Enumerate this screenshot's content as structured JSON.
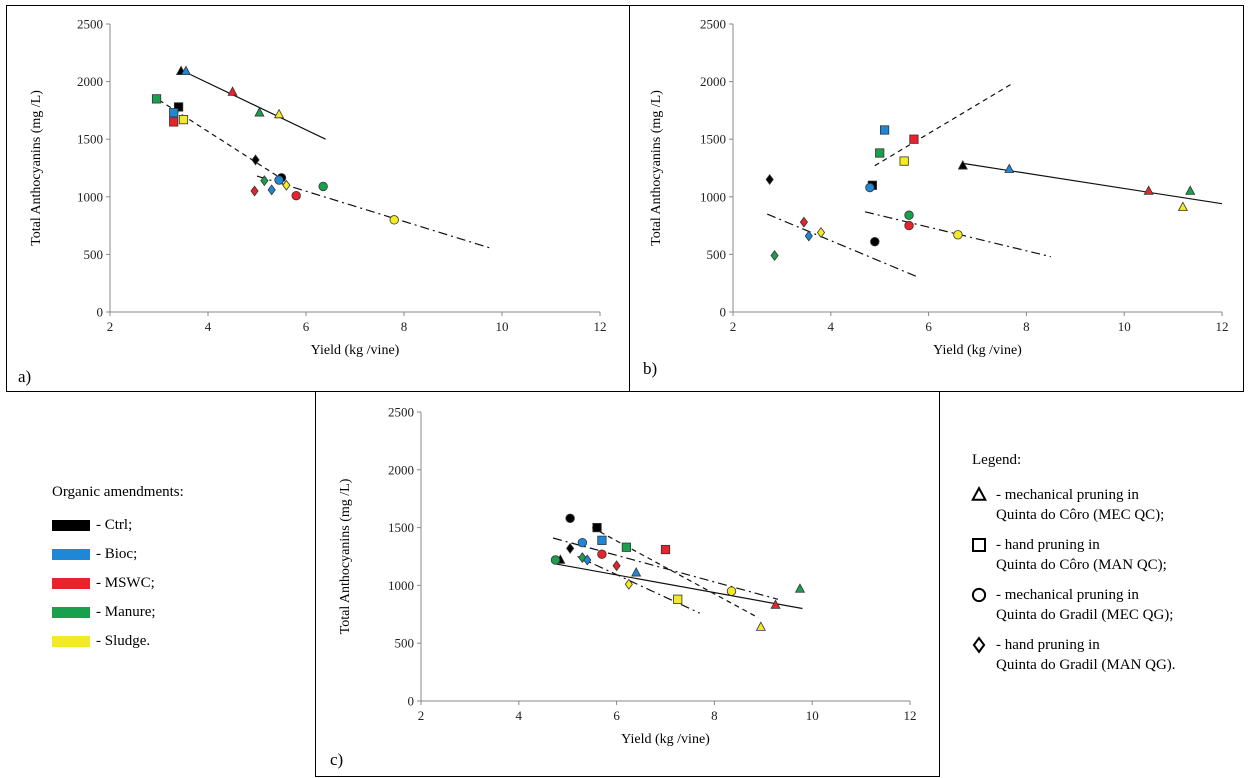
{
  "colors": {
    "Ctrl": "#000000",
    "Bioc": "#1e88d6",
    "MSWC": "#e8232b",
    "Manure": "#19a04d",
    "Sludge": "#f2ea25"
  },
  "amendments_legend": {
    "title": "Organic amendments:",
    "items": [
      {
        "key": "Ctrl",
        "label": "- Ctrl;"
      },
      {
        "key": "Bioc",
        "label": "- Bioc;"
      },
      {
        "key": "MSWC",
        "label": "- MSWC;"
      },
      {
        "key": "Manure",
        "label": "- Manure;"
      },
      {
        "key": "Sludge",
        "label": "- Sludge."
      }
    ]
  },
  "marker_legend": {
    "title": "Legend:",
    "items": [
      {
        "shape": "triangle",
        "line1": "- mechanical pruning in",
        "line2": "Quinta do Côro (MEC QC);"
      },
      {
        "shape": "square",
        "line1": "- hand pruning in",
        "line2": "Quinta do Côro (MAN QC);"
      },
      {
        "shape": "circle",
        "line1": "- mechanical pruning in",
        "line2": "Quinta do Gradil (MEC QG);"
      },
      {
        "shape": "diamond",
        "line1": "- hand pruning in",
        "line2": "Quinta do Gradil (MAN QG)."
      }
    ]
  },
  "chart_data": [
    {
      "type": "scatter",
      "panel_label": "a)",
      "xlabel": "Yield (kg /vine)",
      "ylabel": "Total Anthocyanins (mg /L)",
      "xlim": [
        2,
        12
      ],
      "ylim": [
        0,
        2500
      ],
      "xticks": [
        2,
        4,
        6,
        8,
        10,
        12
      ],
      "yticks": [
        0,
        500,
        1000,
        1500,
        2000,
        2500
      ],
      "points": [
        {
          "shape": "triangle",
          "amend": "Ctrl",
          "x": 3.45,
          "y": 2090
        },
        {
          "shape": "triangle",
          "amend": "Bioc",
          "x": 3.55,
          "y": 2090
        },
        {
          "shape": "triangle",
          "amend": "MSWC",
          "x": 4.5,
          "y": 1910
        },
        {
          "shape": "triangle",
          "amend": "Manure",
          "x": 5.05,
          "y": 1730
        },
        {
          "shape": "triangle",
          "amend": "Sludge",
          "x": 5.45,
          "y": 1715
        },
        {
          "shape": "square",
          "amend": "Manure",
          "x": 2.95,
          "y": 1850
        },
        {
          "shape": "square",
          "amend": "Ctrl",
          "x": 3.4,
          "y": 1780
        },
        {
          "shape": "square",
          "amend": "Bioc",
          "x": 3.3,
          "y": 1730
        },
        {
          "shape": "square",
          "amend": "MSWC",
          "x": 3.3,
          "y": 1650
        },
        {
          "shape": "square",
          "amend": "Sludge",
          "x": 3.5,
          "y": 1670
        },
        {
          "shape": "circle",
          "amend": "Ctrl",
          "x": 5.5,
          "y": 1165
        },
        {
          "shape": "circle",
          "amend": "Bioc",
          "x": 5.45,
          "y": 1145
        },
        {
          "shape": "circle",
          "amend": "Manure",
          "x": 6.35,
          "y": 1090
        },
        {
          "shape": "circle",
          "amend": "MSWC",
          "x": 5.8,
          "y": 1010
        },
        {
          "shape": "circle",
          "amend": "Sludge",
          "x": 7.8,
          "y": 800
        },
        {
          "shape": "diamond",
          "amend": "Ctrl",
          "x": 4.97,
          "y": 1320
        },
        {
          "shape": "diamond",
          "amend": "Manure",
          "x": 5.15,
          "y": 1140
        },
        {
          "shape": "diamond",
          "amend": "Sludge",
          "x": 5.6,
          "y": 1100
        },
        {
          "shape": "diamond",
          "amend": "Bioc",
          "x": 5.3,
          "y": 1060
        },
        {
          "shape": "diamond",
          "amend": "MSWC",
          "x": 4.95,
          "y": 1050
        }
      ],
      "trendlines": [
        {
          "style": "solid",
          "x": [
            3.5,
            6.4
          ],
          "y": [
            2090,
            1500
          ]
        },
        {
          "style": "dash",
          "x": [
            3.0,
            5.6
          ],
          "y": [
            1840,
            1130
          ]
        },
        {
          "style": "dashdot",
          "x": [
            5.0,
            9.8
          ],
          "y": [
            1180,
            550
          ]
        }
      ]
    },
    {
      "type": "scatter",
      "panel_label": "b)",
      "xlabel": "Yield (kg /vine)",
      "ylabel": "Total Anthocyanins (mg /L)",
      "xlim": [
        2,
        12
      ],
      "ylim": [
        0,
        2500
      ],
      "xticks": [
        2,
        4,
        6,
        8,
        10,
        12
      ],
      "yticks": [
        0,
        500,
        1000,
        1500,
        2000,
        2500
      ],
      "points": [
        {
          "shape": "triangle",
          "amend": "Ctrl",
          "x": 6.7,
          "y": 1270
        },
        {
          "shape": "triangle",
          "amend": "Bioc",
          "x": 7.65,
          "y": 1240
        },
        {
          "shape": "triangle",
          "amend": "MSWC",
          "x": 10.5,
          "y": 1050
        },
        {
          "shape": "triangle",
          "amend": "Manure",
          "x": 11.35,
          "y": 1050
        },
        {
          "shape": "triangle",
          "amend": "Sludge",
          "x": 11.2,
          "y": 910
        },
        {
          "shape": "square",
          "amend": "Bioc",
          "x": 5.1,
          "y": 1580
        },
        {
          "shape": "square",
          "amend": "MSWC",
          "x": 5.7,
          "y": 1500
        },
        {
          "shape": "square",
          "amend": "Manure",
          "x": 5.0,
          "y": 1380
        },
        {
          "shape": "square",
          "amend": "Sludge",
          "x": 5.5,
          "y": 1310
        },
        {
          "shape": "square",
          "amend": "Ctrl",
          "x": 4.85,
          "y": 1100
        },
        {
          "shape": "circle",
          "amend": "Bioc",
          "x": 4.8,
          "y": 1080
        },
        {
          "shape": "circle",
          "amend": "Manure",
          "x": 5.6,
          "y": 840
        },
        {
          "shape": "circle",
          "amend": "MSWC",
          "x": 5.6,
          "y": 750
        },
        {
          "shape": "circle",
          "amend": "Sludge",
          "x": 6.6,
          "y": 670
        },
        {
          "shape": "circle",
          "amend": "Ctrl",
          "x": 4.9,
          "y": 610
        },
        {
          "shape": "diamond",
          "amend": "Ctrl",
          "x": 2.75,
          "y": 1150
        },
        {
          "shape": "diamond",
          "amend": "MSWC",
          "x": 3.45,
          "y": 780
        },
        {
          "shape": "diamond",
          "amend": "Sludge",
          "x": 3.8,
          "y": 690
        },
        {
          "shape": "diamond",
          "amend": "Bioc",
          "x": 3.55,
          "y": 660
        },
        {
          "shape": "diamond",
          "amend": "Manure",
          "x": 2.85,
          "y": 490
        }
      ],
      "trendlines": [
        {
          "style": "solid",
          "x": [
            6.7,
            12.0
          ],
          "y": [
            1290,
            940
          ]
        },
        {
          "style": "dash",
          "x": [
            4.9,
            7.7
          ],
          "y": [
            1270,
            1980
          ]
        },
        {
          "style": "dashdot",
          "x": [
            2.7,
            5.8
          ],
          "y": [
            850,
            300
          ]
        },
        {
          "style": "dashdot",
          "x": [
            4.7,
            8.5
          ],
          "y": [
            870,
            480
          ]
        }
      ]
    },
    {
      "type": "scatter",
      "panel_label": "c)",
      "xlabel": "Yield (kg /vine)",
      "ylabel": "Total Anthocyanins (mg /L)",
      "xlim": [
        2,
        12
      ],
      "ylim": [
        0,
        2500
      ],
      "xticks": [
        2,
        4,
        6,
        8,
        10,
        12
      ],
      "yticks": [
        0,
        500,
        1000,
        1500,
        2000,
        2500
      ],
      "points": [
        {
          "shape": "triangle",
          "amend": "Ctrl",
          "x": 4.85,
          "y": 1220
        },
        {
          "shape": "triangle",
          "amend": "Bioc",
          "x": 6.4,
          "y": 1110
        },
        {
          "shape": "triangle",
          "amend": "Manure",
          "x": 9.75,
          "y": 970
        },
        {
          "shape": "triangle",
          "amend": "MSWC",
          "x": 9.25,
          "y": 830
        },
        {
          "shape": "triangle",
          "amend": "Sludge",
          "x": 8.95,
          "y": 640
        },
        {
          "shape": "square",
          "amend": "Ctrl",
          "x": 5.6,
          "y": 1500
        },
        {
          "shape": "square",
          "amend": "Bioc",
          "x": 5.7,
          "y": 1390
        },
        {
          "shape": "square",
          "amend": "Manure",
          "x": 6.2,
          "y": 1330
        },
        {
          "shape": "square",
          "amend": "MSWC",
          "x": 7.0,
          "y": 1310
        },
        {
          "shape": "square",
          "amend": "Sludge",
          "x": 7.25,
          "y": 880
        },
        {
          "shape": "circle",
          "amend": "Ctrl",
          "x": 5.05,
          "y": 1580
        },
        {
          "shape": "circle",
          "amend": "Bioc",
          "x": 5.3,
          "y": 1370
        },
        {
          "shape": "circle",
          "amend": "MSWC",
          "x": 5.7,
          "y": 1270
        },
        {
          "shape": "circle",
          "amend": "Manure",
          "x": 4.75,
          "y": 1220
        },
        {
          "shape": "circle",
          "amend": "Sludge",
          "x": 8.35,
          "y": 950
        },
        {
          "shape": "diamond",
          "amend": "Ctrl",
          "x": 5.05,
          "y": 1320
        },
        {
          "shape": "diamond",
          "amend": "Manure",
          "x": 5.3,
          "y": 1240
        },
        {
          "shape": "diamond",
          "amend": "Bioc",
          "x": 5.4,
          "y": 1220
        },
        {
          "shape": "diamond",
          "amend": "MSWC",
          "x": 6.0,
          "y": 1170
        },
        {
          "shape": "diamond",
          "amend": "Sludge",
          "x": 6.25,
          "y": 1010
        }
      ],
      "trendlines": [
        {
          "style": "solid",
          "x": [
            4.7,
            9.8
          ],
          "y": [
            1190,
            800
          ]
        },
        {
          "style": "dash",
          "x": [
            5.5,
            8.9
          ],
          "y": [
            1500,
            720
          ]
        },
        {
          "style": "dashdot",
          "x": [
            4.7,
            9.3
          ],
          "y": [
            1410,
            880
          ]
        },
        {
          "style": "dashdot",
          "x": [
            5.2,
            7.7
          ],
          "y": [
            1250,
            760
          ]
        }
      ]
    }
  ]
}
